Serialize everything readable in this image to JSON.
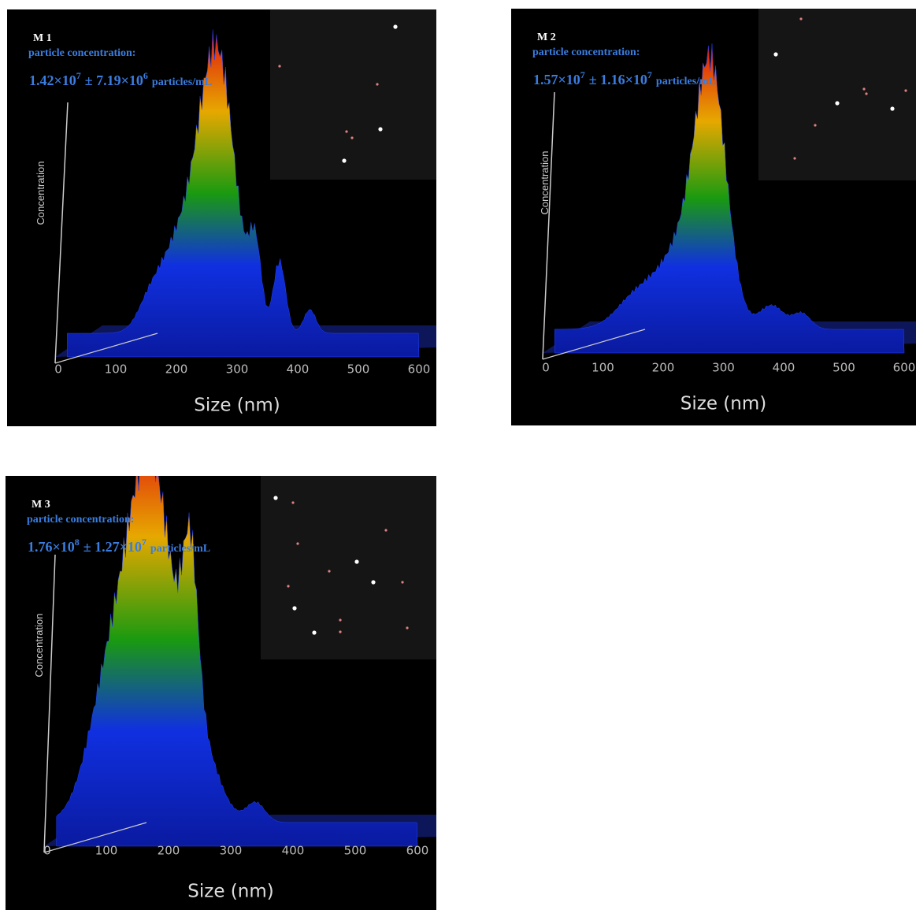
{
  "panels": [
    {
      "label": "M 1",
      "heading": "particle concentration:",
      "value_parts": [
        "1.42×10",
        "7",
        "± 7.19×10",
        "6",
        "particles/mL"
      ],
      "y_label": "Concentration",
      "x_label": "Size (nm)",
      "x_ticks": [
        0,
        100,
        200,
        300,
        400,
        500,
        600
      ]
    },
    {
      "label": "M 2",
      "heading": "particle concentration:",
      "value_parts": [
        "1.57×10",
        "7",
        "± 1.16×10",
        "7",
        "particles/mL"
      ],
      "y_label": "Concentration",
      "x_label": "Size (nm)",
      "x_ticks": [
        0,
        100,
        200,
        300,
        400,
        500,
        600
      ]
    },
    {
      "label": "M 3",
      "heading": "particle concentration:",
      "value_parts": [
        "1.76×10",
        "8",
        "± 1.27×10",
        "7",
        "particles/mL"
      ],
      "y_label": "Concentration",
      "x_label": "Size (nm)",
      "x_ticks": [
        0,
        100,
        200,
        300,
        400,
        500,
        600
      ]
    }
  ]
}
